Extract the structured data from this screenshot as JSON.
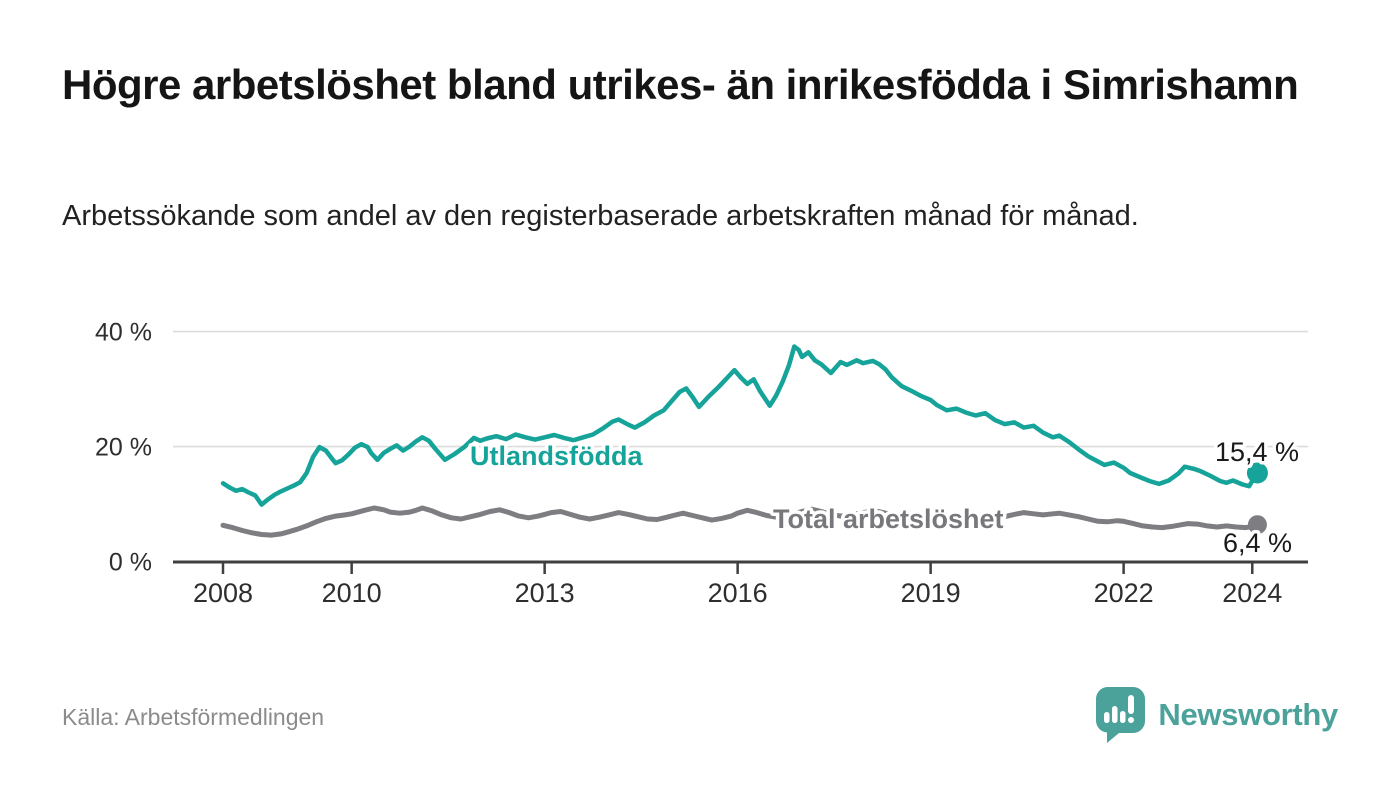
{
  "header": {
    "title": "Högre arbetslöshet bland utrikes- än inrikesfödda i Simrishamn",
    "subtitle": "Arbetssökande som andel av den registerbaserade arbetskraften månad för månad."
  },
  "footer": {
    "source": "Källa: Arbetsförmedlingen",
    "brand": "Newsworthy",
    "logo_icon": "newsworthy-speech-bubble-bar-chart-icon"
  },
  "colors": {
    "accent_teal": "#16a399",
    "series_gray": "#7d7d82",
    "grid": "#dcdcdc",
    "axis": "#3f3f3f",
    "tick_text": "#2e2e2e",
    "value_text": "#1a1a1a",
    "muted_text": "#8b8b8b",
    "logo_teal": "#4ba29a"
  },
  "chart_data": {
    "type": "line",
    "unit": "%",
    "x_axis": {
      "range": [
        2007.2,
        2024.85
      ],
      "ticks": [
        2008,
        2010,
        2013,
        2016,
        2019,
        2022,
        2024
      ]
    },
    "y_axis": {
      "range": [
        0,
        43
      ],
      "ticks": [
        {
          "value": 0,
          "label": "0 %"
        },
        {
          "value": 20,
          "label": "20 %"
        },
        {
          "value": 40,
          "label": "40 %"
        }
      ],
      "gridlines": [
        20,
        40
      ]
    },
    "legend_position": "inline-labels",
    "grid": true,
    "series": [
      {
        "name": "Utlandsfödda",
        "color": "#16a399",
        "end_value": 15.4,
        "end_label": "15,4 %",
        "points": [
          [
            2008.0,
            13.6
          ],
          [
            2008.1,
            12.9
          ],
          [
            2008.2,
            12.3
          ],
          [
            2008.3,
            12.6
          ],
          [
            2008.4,
            12.0
          ],
          [
            2008.5,
            11.5
          ],
          [
            2008.6,
            9.9
          ],
          [
            2008.7,
            10.8
          ],
          [
            2008.8,
            11.6
          ],
          [
            2008.9,
            12.2
          ],
          [
            2009.0,
            12.7
          ],
          [
            2009.1,
            13.2
          ],
          [
            2009.2,
            13.8
          ],
          [
            2009.3,
            15.4
          ],
          [
            2009.4,
            18.2
          ],
          [
            2009.5,
            19.9
          ],
          [
            2009.6,
            19.3
          ],
          [
            2009.7,
            17.8
          ],
          [
            2009.75,
            17.1
          ],
          [
            2009.85,
            17.6
          ],
          [
            2009.95,
            18.6
          ],
          [
            2010.05,
            19.8
          ],
          [
            2010.15,
            20.4
          ],
          [
            2010.25,
            19.9
          ],
          [
            2010.3,
            18.9
          ],
          [
            2010.4,
            17.7
          ],
          [
            2010.5,
            18.9
          ],
          [
            2010.6,
            19.6
          ],
          [
            2010.7,
            20.2
          ],
          [
            2010.8,
            19.3
          ],
          [
            2010.9,
            20.0
          ],
          [
            2011.0,
            20.9
          ],
          [
            2011.1,
            21.6
          ],
          [
            2011.2,
            21.0
          ],
          [
            2011.3,
            19.6
          ],
          [
            2011.45,
            17.7
          ],
          [
            2011.6,
            18.7
          ],
          [
            2011.75,
            19.9
          ],
          [
            2011.9,
            21.5
          ],
          [
            2012.0,
            21.0
          ],
          [
            2012.1,
            21.4
          ],
          [
            2012.25,
            21.8
          ],
          [
            2012.4,
            21.3
          ],
          [
            2012.55,
            22.1
          ],
          [
            2012.7,
            21.6
          ],
          [
            2012.85,
            21.2
          ],
          [
            2013.0,
            21.6
          ],
          [
            2013.15,
            22.0
          ],
          [
            2013.3,
            21.5
          ],
          [
            2013.45,
            21.1
          ],
          [
            2013.6,
            21.6
          ],
          [
            2013.75,
            22.1
          ],
          [
            2013.9,
            23.1
          ],
          [
            2014.05,
            24.3
          ],
          [
            2014.15,
            24.7
          ],
          [
            2014.3,
            23.8
          ],
          [
            2014.4,
            23.3
          ],
          [
            2014.55,
            24.2
          ],
          [
            2014.7,
            25.4
          ],
          [
            2014.85,
            26.3
          ],
          [
            2014.95,
            27.6
          ],
          [
            2015.1,
            29.5
          ],
          [
            2015.2,
            30.1
          ],
          [
            2015.3,
            28.6
          ],
          [
            2015.4,
            26.9
          ],
          [
            2015.55,
            28.7
          ],
          [
            2015.7,
            30.3
          ],
          [
            2015.85,
            32.1
          ],
          [
            2015.95,
            33.3
          ],
          [
            2016.05,
            32.0
          ],
          [
            2016.15,
            30.9
          ],
          [
            2016.25,
            31.7
          ],
          [
            2016.35,
            29.6
          ],
          [
            2016.5,
            27.1
          ],
          [
            2016.6,
            28.9
          ],
          [
            2016.7,
            31.3
          ],
          [
            2016.8,
            34.2
          ],
          [
            2016.88,
            37.4
          ],
          [
            2016.95,
            36.8
          ],
          [
            2017.0,
            35.6
          ],
          [
            2017.1,
            36.4
          ],
          [
            2017.2,
            35.0
          ],
          [
            2017.3,
            34.3
          ],
          [
            2017.45,
            32.8
          ],
          [
            2017.6,
            34.7
          ],
          [
            2017.7,
            34.2
          ],
          [
            2017.85,
            35.0
          ],
          [
            2017.95,
            34.5
          ],
          [
            2018.1,
            34.9
          ],
          [
            2018.2,
            34.3
          ],
          [
            2018.3,
            33.4
          ],
          [
            2018.4,
            32.0
          ],
          [
            2018.55,
            30.5
          ],
          [
            2018.7,
            29.7
          ],
          [
            2018.85,
            28.8
          ],
          [
            2019.0,
            28.1
          ],
          [
            2019.1,
            27.2
          ],
          [
            2019.25,
            26.3
          ],
          [
            2019.4,
            26.6
          ],
          [
            2019.55,
            25.9
          ],
          [
            2019.7,
            25.4
          ],
          [
            2019.85,
            25.8
          ],
          [
            2020.0,
            24.6
          ],
          [
            2020.15,
            23.9
          ],
          [
            2020.3,
            24.2
          ],
          [
            2020.45,
            23.3
          ],
          [
            2020.6,
            23.6
          ],
          [
            2020.75,
            22.4
          ],
          [
            2020.9,
            21.6
          ],
          [
            2021.0,
            21.9
          ],
          [
            2021.15,
            20.8
          ],
          [
            2021.3,
            19.5
          ],
          [
            2021.45,
            18.3
          ],
          [
            2021.6,
            17.4
          ],
          [
            2021.7,
            16.8
          ],
          [
            2021.85,
            17.2
          ],
          [
            2022.0,
            16.3
          ],
          [
            2022.1,
            15.4
          ],
          [
            2022.25,
            14.7
          ],
          [
            2022.4,
            14.0
          ],
          [
            2022.55,
            13.5
          ],
          [
            2022.7,
            14.1
          ],
          [
            2022.85,
            15.3
          ],
          [
            2022.95,
            16.5
          ],
          [
            2023.1,
            16.1
          ],
          [
            2023.2,
            15.7
          ],
          [
            2023.35,
            14.9
          ],
          [
            2023.5,
            14.0
          ],
          [
            2023.6,
            13.7
          ],
          [
            2023.7,
            14.1
          ],
          [
            2023.85,
            13.4
          ],
          [
            2023.95,
            13.1
          ],
          [
            2024.0,
            14.0
          ],
          [
            2024.08,
            15.4
          ]
        ]
      },
      {
        "name": "Total arbetslöshet",
        "color": "#7d7d82",
        "end_value": 6.4,
        "end_label": "6,4 %",
        "points": [
          [
            2008.0,
            6.3
          ],
          [
            2008.15,
            5.9
          ],
          [
            2008.3,
            5.4
          ],
          [
            2008.45,
            5.0
          ],
          [
            2008.6,
            4.7
          ],
          [
            2008.75,
            4.6
          ],
          [
            2008.9,
            4.8
          ],
          [
            2009.0,
            5.1
          ],
          [
            2009.15,
            5.6
          ],
          [
            2009.3,
            6.2
          ],
          [
            2009.45,
            6.9
          ],
          [
            2009.6,
            7.5
          ],
          [
            2009.75,
            7.9
          ],
          [
            2009.9,
            8.1
          ],
          [
            2010.0,
            8.3
          ],
          [
            2010.1,
            8.6
          ],
          [
            2010.2,
            8.9
          ],
          [
            2010.35,
            9.3
          ],
          [
            2010.5,
            9.0
          ],
          [
            2010.6,
            8.6
          ],
          [
            2010.75,
            8.4
          ],
          [
            2010.9,
            8.6
          ],
          [
            2011.0,
            8.9
          ],
          [
            2011.1,
            9.3
          ],
          [
            2011.25,
            8.8
          ],
          [
            2011.4,
            8.1
          ],
          [
            2011.55,
            7.6
          ],
          [
            2011.7,
            7.4
          ],
          [
            2011.85,
            7.8
          ],
          [
            2012.0,
            8.2
          ],
          [
            2012.15,
            8.7
          ],
          [
            2012.3,
            9.0
          ],
          [
            2012.45,
            8.5
          ],
          [
            2012.6,
            7.9
          ],
          [
            2012.75,
            7.6
          ],
          [
            2012.9,
            7.9
          ],
          [
            2013.0,
            8.2
          ],
          [
            2013.1,
            8.5
          ],
          [
            2013.25,
            8.7
          ],
          [
            2013.4,
            8.2
          ],
          [
            2013.55,
            7.7
          ],
          [
            2013.7,
            7.4
          ],
          [
            2013.85,
            7.7
          ],
          [
            2014.0,
            8.1
          ],
          [
            2014.15,
            8.5
          ],
          [
            2014.3,
            8.2
          ],
          [
            2014.45,
            7.8
          ],
          [
            2014.6,
            7.4
          ],
          [
            2014.75,
            7.3
          ],
          [
            2014.9,
            7.7
          ],
          [
            2015.0,
            8.0
          ],
          [
            2015.15,
            8.4
          ],
          [
            2015.3,
            8.0
          ],
          [
            2015.45,
            7.6
          ],
          [
            2015.6,
            7.2
          ],
          [
            2015.75,
            7.5
          ],
          [
            2015.9,
            7.9
          ],
          [
            2016.0,
            8.4
          ],
          [
            2016.15,
            8.9
          ],
          [
            2016.3,
            8.5
          ],
          [
            2016.45,
            8.0
          ],
          [
            2016.6,
            7.7
          ],
          [
            2016.75,
            8.0
          ],
          [
            2016.9,
            8.4
          ],
          [
            2017.0,
            8.7
          ],
          [
            2017.15,
            9.1
          ],
          [
            2017.3,
            8.7
          ],
          [
            2017.45,
            8.2
          ],
          [
            2017.6,
            7.9
          ],
          [
            2017.75,
            8.1
          ],
          [
            2017.9,
            8.4
          ],
          [
            2018.0,
            8.6
          ],
          [
            2018.15,
            8.8
          ],
          [
            2018.3,
            8.4
          ],
          [
            2018.45,
            7.9
          ],
          [
            2018.6,
            7.6
          ],
          [
            2018.75,
            7.8
          ],
          [
            2018.9,
            8.0
          ],
          [
            2019.0,
            7.9
          ],
          [
            2019.15,
            7.7
          ],
          [
            2019.3,
            7.5
          ],
          [
            2019.45,
            7.3
          ],
          [
            2019.6,
            7.2
          ],
          [
            2019.75,
            7.4
          ],
          [
            2019.9,
            7.6
          ],
          [
            2020.0,
            7.5
          ],
          [
            2020.15,
            7.8
          ],
          [
            2020.3,
            8.2
          ],
          [
            2020.45,
            8.5
          ],
          [
            2020.6,
            8.3
          ],
          [
            2020.75,
            8.1
          ],
          [
            2020.9,
            8.3
          ],
          [
            2021.0,
            8.4
          ],
          [
            2021.15,
            8.1
          ],
          [
            2021.3,
            7.8
          ],
          [
            2021.45,
            7.4
          ],
          [
            2021.6,
            7.0
          ],
          [
            2021.75,
            6.9
          ],
          [
            2021.9,
            7.1
          ],
          [
            2022.0,
            7.0
          ],
          [
            2022.15,
            6.6
          ],
          [
            2022.3,
            6.2
          ],
          [
            2022.45,
            6.0
          ],
          [
            2022.6,
            5.9
          ],
          [
            2022.75,
            6.1
          ],
          [
            2022.9,
            6.4
          ],
          [
            2023.0,
            6.6
          ],
          [
            2023.15,
            6.5
          ],
          [
            2023.3,
            6.2
          ],
          [
            2023.45,
            6.0
          ],
          [
            2023.6,
            6.2
          ],
          [
            2023.75,
            6.0
          ],
          [
            2023.9,
            5.9
          ],
          [
            2024.0,
            6.1
          ],
          [
            2024.08,
            6.4
          ]
        ]
      }
    ]
  }
}
